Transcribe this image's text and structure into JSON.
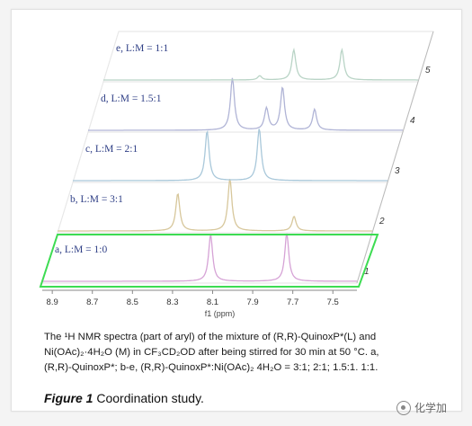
{
  "chart_data": {
    "type": "line",
    "xlabel": "f1 (ppm)",
    "x_ticks": [
      8.9,
      8.7,
      8.5,
      8.3,
      8.1,
      7.9,
      7.7,
      7.5
    ],
    "x_range": [
      8.95,
      7.38
    ],
    "series": [
      {
        "name": "a, L:M = 1:0",
        "depth": "1",
        "color": "#d6a3d6",
        "peaks": [
          {
            "ppm": 8.11,
            "height": 0.9
          },
          {
            "ppm": 7.73,
            "height": 0.92
          }
        ]
      },
      {
        "name": "b, L:M = 3:1",
        "depth": "2",
        "color": "#d7c79b",
        "peaks": [
          {
            "ppm": 8.35,
            "height": 0.72
          },
          {
            "ppm": 8.09,
            "height": 1.0
          },
          {
            "ppm": 7.77,
            "height": 0.28
          }
        ]
      },
      {
        "name": "c, L:M = 2:1",
        "depth": "3",
        "color": "#a9c8da",
        "peaks": [
          {
            "ppm": 8.28,
            "height": 0.95
          },
          {
            "ppm": 8.02,
            "height": 1.0
          }
        ]
      },
      {
        "name": "d, L:M = 1.5:1",
        "depth": "4",
        "color": "#b0b4d6",
        "peaks": [
          {
            "ppm": 8.23,
            "height": 1.0
          },
          {
            "ppm": 8.06,
            "height": 0.42
          },
          {
            "ppm": 7.98,
            "height": 0.82
          },
          {
            "ppm": 7.82,
            "height": 0.4
          }
        ]
      },
      {
        "name": "e, L:M = 1:1",
        "depth": "5",
        "color": "#b9d4c6",
        "peaks": [
          {
            "ppm": 8.17,
            "height": 0.08
          },
          {
            "ppm": 8.0,
            "height": 0.58
          },
          {
            "ppm": 7.76,
            "height": 0.58
          }
        ]
      }
    ],
    "highlighted_series": "a, L:M = 1:0",
    "highlight_color": "#3ddc52"
  },
  "caption": {
    "line1": "The ¹H NMR spectra (part of aryl) of the mixture of (R,R)-QuinoxP*(L) and",
    "line2": "Ni(OAc)₂·4H₂O (M) in CF₃CD₂OD after being stirred for 30 min at 50 °C. a,",
    "line3": "(R,R)-QuinoxP*; b-e, (R,R)-QuinoxP*:Ni(OAc)₂ 4H₂O = 3:1; 2:1; 1.5:1. 1:1."
  },
  "figure_title": {
    "label": "Figure 1",
    "text": " Coordination study."
  },
  "watermark": {
    "text": "化学加",
    "icon": "wechat-icon"
  }
}
